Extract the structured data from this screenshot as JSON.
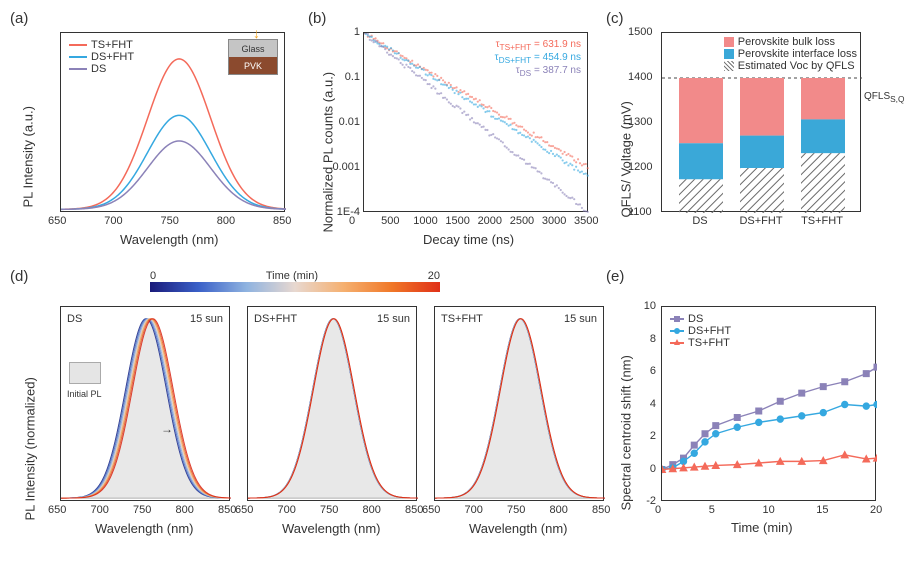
{
  "panels": {
    "a": {
      "label": "(a)",
      "ylabel": "PL Intensity (a.u.)",
      "xlabel": "Wavelength (nm)",
      "xlim": [
        650,
        850
      ],
      "xticks": [
        650,
        700,
        750,
        800,
        850
      ],
      "ylim": [
        0,
        1
      ],
      "legend": [
        {
          "label": "TS+FHT",
          "color": "#f46a5a"
        },
        {
          "label": "DS+FHT",
          "color": "#35a8e0"
        },
        {
          "label": "DS",
          "color": "#8b82b8"
        }
      ],
      "inset": {
        "top": "Glass",
        "top_bg": "#c5c5c5",
        "bottom": "PVK",
        "bottom_bg": "#8b4a2e",
        "arrow_color": "#f5a623"
      },
      "curves": {
        "peak_nm": 755,
        "series": [
          {
            "color": "#f46a5a",
            "height": 0.88
          },
          {
            "color": "#35a8e0",
            "height": 0.55
          },
          {
            "color": "#8b82b8",
            "height": 0.4
          }
        ]
      }
    },
    "b": {
      "label": "(b)",
      "ylabel": "Normalized PL counts (a.u.)",
      "xlabel": "Decay time (ns)",
      "xlim": [
        0,
        3500
      ],
      "xticks": [
        0,
        500,
        1000,
        1500,
        2000,
        2500,
        3000,
        3500
      ],
      "yticks_labels": [
        "1",
        "0.1",
        "0.01",
        "0.001",
        "1E-4"
      ],
      "annotations": [
        {
          "text": "τ_TS+FHT = 631.9 ns",
          "color": "#f46a5a"
        },
        {
          "text": "τ_DS+FHT = 454.9 ns",
          "color": "#35a8e0"
        },
        {
          "text": "τ_DS = 387.7 ns",
          "color": "#8b82b8"
        }
      ],
      "decays": [
        {
          "color": "#f46a5a",
          "end_y_log": -3.0
        },
        {
          "color": "#35a8e0",
          "end_y_log": -3.2
        },
        {
          "color": "#8b82b8",
          "end_y_log": -4.0
        }
      ]
    },
    "c": {
      "label": "(c)",
      "ylabel": "QFLS/ Voltage (mV)",
      "ylim": [
        1100,
        1500
      ],
      "yticks": [
        1100,
        1200,
        1300,
        1400,
        1500
      ],
      "dashed_line": {
        "y": 1400,
        "label": "QFLS_S,Q"
      },
      "legend": [
        {
          "label": "Perovskite bulk loss",
          "type": "fill",
          "color": "#f28a8a"
        },
        {
          "label": "Perovskite interface loss",
          "type": "fill",
          "color": "#3aa8d8"
        },
        {
          "label": "Estimated Voc by QFLS",
          "type": "hatch",
          "color": "#777"
        }
      ],
      "categories": [
        "DS",
        "DS+FHT",
        "TS+FHT"
      ],
      "bars": [
        {
          "voc": 1175,
          "interface_top": 1255,
          "bulk_top": 1400
        },
        {
          "voc": 1200,
          "interface_top": 1272,
          "bulk_top": 1400
        },
        {
          "voc": 1233,
          "interface_top": 1308,
          "bulk_top": 1400
        }
      ],
      "colors": {
        "bulk": "#f28a8a",
        "interface": "#3aa8d8",
        "voc_hatch": "#6b6b6b"
      }
    },
    "d": {
      "label": "(d)",
      "ylabel": "PL Intensity (normalized)",
      "xlabel": "Wavelength (nm)",
      "xlim": [
        650,
        850
      ],
      "xticks": [
        650,
        700,
        750,
        800,
        850
      ],
      "colorbar": {
        "title": "Time (min)",
        "min": 0,
        "max": 20,
        "stops": [
          "#1a1a7a",
          "#3a60c8",
          "#8fb3e0",
          "#e8d8d0",
          "#f5b070",
          "#f07828",
          "#e03018"
        ]
      },
      "subs": [
        {
          "title": "DS",
          "sun": "15 sun",
          "initial": "Initial PL",
          "shift": true
        },
        {
          "title": "DS+FHT",
          "sun": "15 sun",
          "shift": false
        },
        {
          "title": "TS+FHT",
          "sun": "15 sun",
          "shift": false
        }
      ],
      "peak_nm": 750,
      "curve_colors": [
        "#2a3a9a",
        "#4a70c8",
        "#8aa8d8",
        "#e0c8b8",
        "#f0a050",
        "#e85828",
        "#d82818"
      ]
    },
    "e": {
      "label": "(e)",
      "ylabel": "Spectral centroid shift (nm)",
      "xlabel": "Time (min)",
      "xlim": [
        0,
        20
      ],
      "xticks": [
        0,
        5,
        10,
        15,
        20
      ],
      "ylim": [
        -2,
        10
      ],
      "yticks": [
        -2,
        0,
        2,
        4,
        6,
        8,
        10
      ],
      "legend": [
        {
          "label": "DS",
          "color": "#8b82b8",
          "marker": "square"
        },
        {
          "label": "DS+FHT",
          "color": "#35a8e0",
          "marker": "circle"
        },
        {
          "label": "TS+FHT",
          "color": "#f46a5a",
          "marker": "triangle"
        }
      ],
      "series": {
        "DS": {
          "x": [
            0,
            1,
            2,
            3,
            4,
            5,
            7,
            9,
            11,
            13,
            15,
            17,
            19,
            20
          ],
          "y": [
            0,
            0.3,
            0.7,
            1.5,
            2.2,
            2.7,
            3.2,
            3.6,
            4.2,
            4.7,
            5.1,
            5.4,
            5.9,
            6.3
          ]
        },
        "DS+FHT": {
          "x": [
            0,
            1,
            2,
            3,
            4,
            5,
            7,
            9,
            11,
            13,
            15,
            17,
            19,
            20
          ],
          "y": [
            0,
            0.1,
            0.5,
            1.0,
            1.7,
            2.2,
            2.6,
            2.9,
            3.1,
            3.3,
            3.5,
            4.0,
            3.9,
            4.0
          ]
        },
        "TS+FHT": {
          "x": [
            0,
            1,
            2,
            3,
            4,
            5,
            7,
            9,
            11,
            13,
            15,
            17,
            19,
            20
          ],
          "y": [
            0,
            0.05,
            0.1,
            0.15,
            0.2,
            0.25,
            0.3,
            0.4,
            0.5,
            0.5,
            0.55,
            0.9,
            0.65,
            0.7
          ]
        }
      }
    }
  }
}
